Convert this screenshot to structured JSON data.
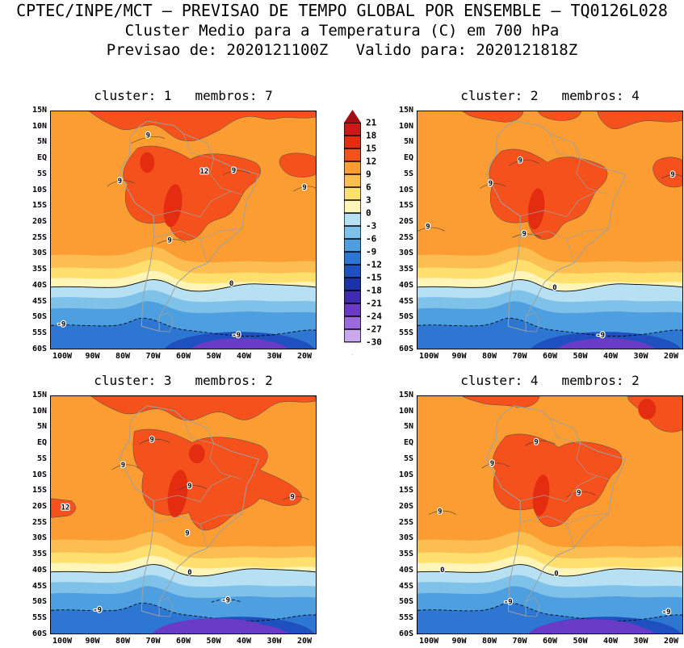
{
  "header": {
    "line1": "CPTEC/INPE/MCT — PREVISAO DE TEMPO GLOBAL POR ENSEMBLE — TQ0126L028",
    "line2": "Cluster Medio para a Temperatura (C) em 700 hPa",
    "line3": "Previsao de: 2020121100Z   Valido para: 2020121818Z"
  },
  "axes": {
    "lat_labels": [
      "15N",
      "10N",
      "5N",
      "EQ",
      "5S",
      "10S",
      "15S",
      "20S",
      "25S",
      "30S",
      "35S",
      "40S",
      "45S",
      "50S",
      "55S",
      "60S"
    ],
    "lon_labels": [
      "100W",
      "90W",
      "80W",
      "70W",
      "60W",
      "50W",
      "40W",
      "30W",
      "20W"
    ]
  },
  "colorbar": {
    "values": [
      21,
      18,
      15,
      12,
      9,
      6,
      3,
      0,
      -3,
      -6,
      -9,
      -12,
      -15,
      -18,
      -21,
      -24,
      -27,
      -30
    ],
    "colors": [
      "#A50D15",
      "#CD1719",
      "#E42D10",
      "#F4511C",
      "#FB9D32",
      "#FDBE51",
      "#FFDF6E",
      "#FFF5B8",
      "#B7E1F3",
      "#7EC2EA",
      "#4D9FE0",
      "#2D77D2",
      "#1E50C0",
      "#1A34A8",
      "#3F2BAE",
      "#6A3CC6",
      "#9B6ADB",
      "#C9A8EE",
      "#FFFFFF"
    ]
  },
  "panels": [
    {
      "cluster": 1,
      "members": 7,
      "title": "cluster: 1   membros: 7",
      "labels": [
        "9",
        "9",
        "12",
        "9",
        "9",
        "9",
        "0",
        "-9",
        "-9"
      ]
    },
    {
      "cluster": 2,
      "members": 4,
      "title": "cluster: 2   membros: 4",
      "labels": [
        "9",
        "9",
        "9",
        "9",
        "0",
        "-9",
        "9"
      ]
    },
    {
      "cluster": 3,
      "members": 2,
      "title": "cluster: 3   membros: 2",
      "labels": [
        "9",
        "9",
        "9",
        "12",
        "9",
        "9",
        "0",
        "-9",
        "-9"
      ]
    },
    {
      "cluster": 4,
      "members": 2,
      "title": "cluster: 4   membros: 2",
      "labels": [
        "9",
        "9",
        "9",
        "9",
        "0",
        "0",
        "-9",
        "-9"
      ]
    }
  ],
  "chart_data": {
    "type": "heatmap",
    "title": "Cluster Medio para a Temperatura (C) em 700 hPa",
    "header": "CPTEC/INPE/MCT — PREVISAO DE TEMPO GLOBAL POR ENSEMBLE — TQ0126L028",
    "init_time": "2020121100Z",
    "valid_time": "2020121818Z",
    "variable": "Temperatura (C)",
    "level_hPa": 700,
    "domain": {
      "lat_range": [
        "15N",
        "60S"
      ],
      "lon_range": [
        "100W",
        "20W"
      ]
    },
    "colorbar_levels_C": [
      21,
      18,
      15,
      12,
      9,
      6,
      3,
      0,
      -3,
      -6,
      -9,
      -12,
      -15,
      -18,
      -21,
      -24,
      -27,
      -30
    ],
    "panels": [
      {
        "cluster": 1,
        "membros": 7,
        "visible_contour_labels_C": [
          9,
          12,
          0,
          -9
        ]
      },
      {
        "cluster": 2,
        "membros": 4,
        "visible_contour_labels_C": [
          9,
          0,
          -9
        ]
      },
      {
        "cluster": 3,
        "membros": 2,
        "visible_contour_labels_C": [
          9,
          12,
          0,
          -9
        ]
      },
      {
        "cluster": 4,
        "membros": 2,
        "visible_contour_labels_C": [
          9,
          0,
          -9
        ]
      }
    ],
    "pattern_summary": "700 hPa temperatures of 9-15C cover tropical South America (pockets above 15C over the central Andes/Amazon), the 0C contour crosses near 35-40S, values drop below -9C south of ~50S with a sub -21C pocket near 60S."
  }
}
